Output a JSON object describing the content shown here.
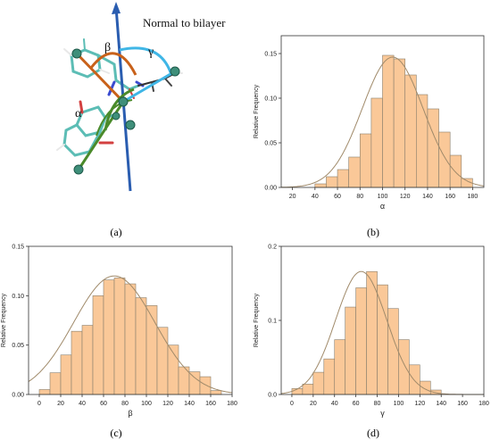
{
  "figure": {
    "panel_labels": [
      "(a)",
      "(b)",
      "(c)",
      "(d)"
    ],
    "molecule": {
      "normal_label": "Normal to bilayer",
      "angle_labels": {
        "alpha": "α",
        "beta": "β",
        "gamma": "γ"
      },
      "colors": {
        "normal_axis": "#2a5db0",
        "alpha_arc": "#4a8a2a",
        "beta_arc": "#c8611a",
        "gamma_arc": "#3fb6e6"
      }
    }
  },
  "chart_data": [
    {
      "type": "bar",
      "panel": "b",
      "xlabel": "α",
      "ylabel": "Relative Frequency",
      "xlim": [
        10,
        190
      ],
      "ylim": [
        0,
        0.17
      ],
      "xticks": [
        20,
        40,
        60,
        80,
        100,
        120,
        140,
        160,
        180
      ],
      "yticks": [
        0.0,
        0.05,
        0.1,
        0.15
      ],
      "ytick_labels": [
        "0.00",
        "0.05",
        "0.10",
        "0.15"
      ],
      "bin_width": 10,
      "bins": [
        40,
        50,
        60,
        70,
        80,
        90,
        100,
        110,
        120,
        130,
        140,
        150,
        160,
        170
      ],
      "values": [
        0.004,
        0.012,
        0.02,
        0.034,
        0.06,
        0.1,
        0.148,
        0.144,
        0.126,
        0.104,
        0.088,
        0.062,
        0.036,
        0.01
      ],
      "fit": {
        "type": "gaussian",
        "mean": 109,
        "sd": 27,
        "peak": 0.146
      },
      "colors": {
        "bar_fill": "#fac898",
        "bar_edge": "#8a7f6c",
        "fit_line": "#a08a6a"
      }
    },
    {
      "type": "bar",
      "panel": "c",
      "xlabel": "β",
      "ylabel": "Relative Frequency",
      "xlim": [
        -10,
        180
      ],
      "ylim": [
        0,
        0.15
      ],
      "xticks": [
        0,
        20,
        40,
        60,
        80,
        100,
        120,
        140,
        160,
        180
      ],
      "yticks": [
        0.0,
        0.05,
        0.1,
        0.15
      ],
      "ytick_labels": [
        "0.00",
        "0.05",
        "0.10",
        "0.15"
      ],
      "bin_width": 10,
      "bins": [
        0,
        10,
        20,
        30,
        40,
        50,
        60,
        70,
        80,
        90,
        100,
        110,
        120,
        130,
        140,
        150,
        160
      ],
      "values": [
        0.005,
        0.022,
        0.04,
        0.064,
        0.07,
        0.1,
        0.116,
        0.118,
        0.112,
        0.098,
        0.09,
        0.068,
        0.05,
        0.028,
        0.023,
        0.018,
        0.004
      ],
      "fit": {
        "type": "gaussian",
        "mean": 70,
        "sd": 38,
        "peak": 0.12
      },
      "colors": {
        "bar_fill": "#fac898",
        "bar_edge": "#8a7f6c",
        "fit_line": "#a08a6a"
      }
    },
    {
      "type": "bar",
      "panel": "d",
      "xlabel": "γ",
      "ylabel": "Relative Frequency",
      "xlim": [
        -10,
        180
      ],
      "ylim": [
        0,
        0.2
      ],
      "xticks": [
        0,
        20,
        40,
        60,
        80,
        100,
        120,
        140,
        160,
        180
      ],
      "yticks": [
        0.0,
        0.1,
        0.2
      ],
      "ytick_labels": [
        "0.0",
        "0.1",
        "0.2"
      ],
      "bin_width": 10,
      "bins": [
        0,
        10,
        20,
        30,
        40,
        50,
        60,
        70,
        80,
        90,
        100,
        110,
        120,
        130
      ],
      "values": [
        0.008,
        0.014,
        0.03,
        0.048,
        0.074,
        0.118,
        0.144,
        0.166,
        0.148,
        0.116,
        0.074,
        0.04,
        0.018,
        0.006
      ],
      "fit": {
        "type": "gaussian",
        "mean": 65,
        "sd": 24,
        "peak": 0.166
      },
      "colors": {
        "bar_fill": "#fac898",
        "bar_edge": "#8a7f6c",
        "fit_line": "#a08a6a"
      }
    }
  ]
}
